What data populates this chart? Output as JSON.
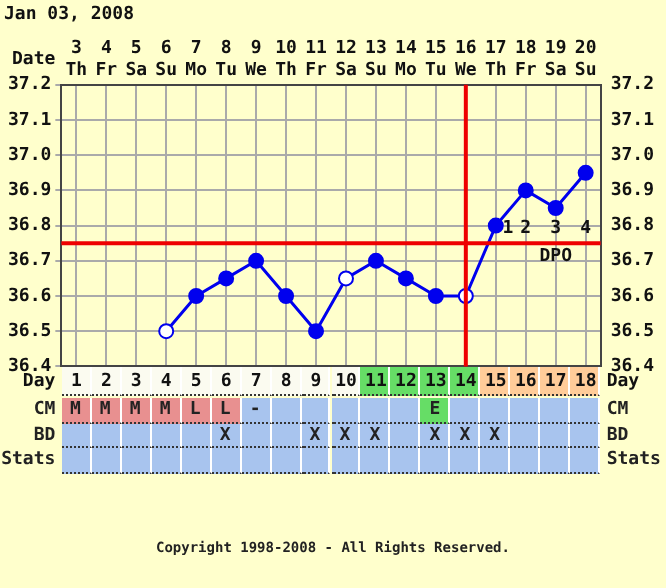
{
  "chart_data": [
    {
      "type": "line",
      "title": "Jan 03, 2008",
      "xlabel": "Date",
      "categories": [
        "3 Th",
        "4 Fr",
        "5 Sa",
        "6 Su",
        "7 Mo",
        "8 Tu",
        "9 We",
        "10 Th",
        "11 Fr",
        "12 Sa",
        "13 Su",
        "14 Mo",
        "15 Tu",
        "16 We",
        "17 Th",
        "18 Fr",
        "19 Sa",
        "20 Su"
      ],
      "series": [
        {
          "color": "#0000ee",
          "values": [
            null,
            null,
            null,
            36.5,
            36.6,
            36.65,
            36.7,
            36.6,
            36.5,
            36.65,
            36.7,
            36.65,
            36.6,
            36.6,
            36.8,
            36.9,
            36.85,
            36.95
          ],
          "colors": [
            null,
            null,
            null,
            "#ffffff",
            "#0000ee",
            "#0000ee",
            "#0000ee",
            "#0000ee",
            "#0000ee",
            "#ffffff",
            "#0000ee",
            "#0000ee",
            "#0000ee",
            "#ffffff",
            "#0000ee",
            "#0000ee",
            "#0000ee",
            "#0000ee"
          ]
        }
      ],
      "ylim": [
        36.4,
        37.2
      ],
      "yticks": [
        36.4,
        36.5,
        36.6,
        36.7,
        36.8,
        36.9,
        {
          "value": 37,
          "label": "37.0"
        },
        37.1,
        37.2
      ],
      "y2lim": [
        36.4,
        37.2
      ],
      "y2ticks": [
        36.4,
        36.5,
        36.6,
        36.7,
        36.8,
        36.9,
        {
          "value": 37,
          "label": "37.0"
        },
        37.1,
        37.2
      ],
      "grid": true,
      "marker": "circle",
      "line_style": "solid",
      "ref_lines": [
        {
          "axis": "x",
          "value": "16 We",
          "color": "#ee0000"
        },
        {
          "axis": "y",
          "value": 36.75,
          "color": "#ee0000"
        }
      ],
      "x2label": "Day",
      "x2lim": [
        0.5,
        18.5
      ],
      "x2ticks": [
        1,
        2,
        3,
        4,
        5,
        6,
        7,
        8,
        9,
        10,
        11,
        12,
        13,
        14,
        15,
        16,
        17,
        18
      ],
      "annotations": [
        "1",
        "2",
        "3",
        "4",
        "DPO",
        "Copyright 1998-2008 - All Rights Reserved."
      ]
    },
    {
      "type": "other",
      "y_categories": [
        null,
        "CM",
        "BD",
        "Stats"
      ],
      "y2_categories": [
        null,
        "CM",
        "BD",
        "Stats"
      ],
      "cell_labels": [
        [
          null,
          null,
          null,
          null,
          null,
          null,
          null,
          null,
          null,
          null,
          null,
          null,
          null,
          null,
          null,
          null,
          null,
          null
        ],
        [
          "M",
          "M",
          "M",
          "M",
          "L",
          "L",
          "-",
          null,
          null,
          null,
          null,
          null,
          "E",
          null,
          null,
          null,
          null,
          null
        ],
        [
          null,
          null,
          null,
          null,
          null,
          "X",
          null,
          null,
          "X",
          "X",
          "X",
          null,
          "X",
          "X",
          "X",
          null,
          null,
          null
        ],
        [
          null,
          null,
          null,
          null,
          null,
          null,
          null,
          null,
          null,
          null,
          null,
          null,
          null,
          null,
          null,
          null,
          null,
          null
        ]
      ],
      "colors": [
        [
          "#fbfbf0",
          "#fbfbf0",
          "#fbfbf0",
          "#fbfbf0",
          "#fbfbf0",
          "#fbfbf0",
          "#fbfbf0",
          "#fbfbf0",
          "#fbfbf0",
          "#fbfbf0",
          "#66dd66",
          "#66dd66",
          "#66dd66",
          "#66dd66",
          "#ffcc99",
          "#ffcc99",
          "#ffcc99",
          "#ffcc99"
        ],
        [
          "#e89090",
          "#e89090",
          "#e89090",
          "#e89090",
          "#e89090",
          "#e89090",
          "#a8c4ee",
          "#a8c4ee",
          "#a8c4ee",
          "#a8c4ee",
          "#a8c4ee",
          "#a8c4ee",
          "#66dd66",
          "#a8c4ee",
          "#a8c4ee",
          "#a8c4ee",
          "#a8c4ee",
          "#a8c4ee"
        ],
        [
          "#a8c4ee",
          "#a8c4ee",
          "#a8c4ee",
          "#a8c4ee",
          "#a8c4ee",
          "#a8c4ee",
          "#a8c4ee",
          "#a8c4ee",
          "#a8c4ee",
          "#a8c4ee",
          "#a8c4ee",
          "#a8c4ee",
          "#a8c4ee",
          "#a8c4ee",
          "#a8c4ee",
          "#a8c4ee",
          "#a8c4ee",
          "#a8c4ee"
        ],
        [
          "#a8c4ee",
          "#a8c4ee",
          "#a8c4ee",
          "#a8c4ee",
          "#a8c4ee",
          "#a8c4ee",
          "#a8c4ee",
          "#a8c4ee",
          "#a8c4ee",
          "#a8c4ee",
          "#a8c4ee",
          "#a8c4ee",
          "#a8c4ee",
          "#a8c4ee",
          "#a8c4ee",
          "#a8c4ee",
          "#a8c4ee",
          "#a8c4ee"
        ]
      ]
    }
  ]
}
